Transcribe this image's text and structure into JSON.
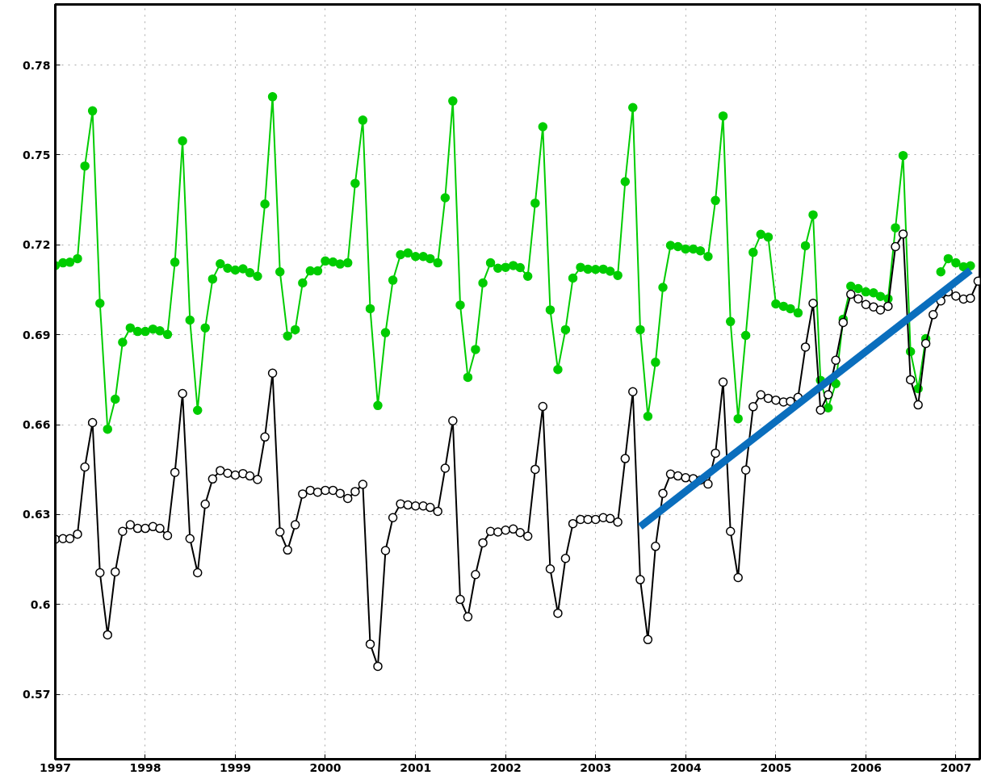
{
  "chart_data": {
    "type": "line",
    "x": [
      "1997-01",
      "1997-02",
      "1997-03",
      "1997-04",
      "1997-05",
      "1997-06",
      "1997-07",
      "1997-08",
      "1997-09",
      "1997-10",
      "1997-11",
      "1997-12",
      "1998-01",
      "1998-02",
      "1998-03",
      "1998-04",
      "1998-05",
      "1998-06",
      "1998-07",
      "1998-08",
      "1998-09",
      "1998-10",
      "1998-11",
      "1998-12",
      "1999-01",
      "1999-02",
      "1999-03",
      "1999-04",
      "1999-05",
      "1999-06",
      "1999-07",
      "1999-08",
      "1999-09",
      "1999-10",
      "1999-11",
      "1999-12",
      "2000-01",
      "2000-02",
      "2000-03",
      "2000-04",
      "2000-05",
      "2000-06",
      "2000-07",
      "2000-08",
      "2000-09",
      "2000-10",
      "2000-11",
      "2000-12",
      "2001-01",
      "2001-02",
      "2001-03",
      "2001-04",
      "2001-05",
      "2001-06",
      "2001-07",
      "2001-08",
      "2001-09",
      "2001-10",
      "2001-11",
      "2001-12",
      "2002-01",
      "2002-02",
      "2002-03",
      "2002-04",
      "2002-05",
      "2002-06",
      "2002-07",
      "2002-08",
      "2002-09",
      "2002-10",
      "2002-11",
      "2002-12",
      "2003-01",
      "2003-02",
      "2003-03",
      "2003-04",
      "2003-05",
      "2003-06",
      "2003-07",
      "2003-08",
      "2003-09",
      "2003-10",
      "2003-11",
      "2003-12",
      "2004-01",
      "2004-02",
      "2004-03",
      "2004-04",
      "2004-05",
      "2004-06",
      "2004-07",
      "2004-08",
      "2004-09",
      "2004-10",
      "2004-11",
      "2004-12",
      "2005-01",
      "2005-02",
      "2005-03",
      "2005-04",
      "2005-05",
      "2005-06",
      "2005-07",
      "2005-08",
      "2005-09",
      "2005-10",
      "2005-11",
      "2005-12",
      "2006-01",
      "2006-02",
      "2006-03",
      "2006-04",
      "2006-05",
      "2006-06",
      "2006-07",
      "2006-08",
      "2006-09",
      "2006-10",
      "2006-11",
      "2006-12",
      "2007-01",
      "2007-02",
      "2007-03",
      "2007-04"
    ],
    "series": [
      {
        "color": "#00cc00",
        "marker": "circle",
        "values": [
          0.7131,
          0.714,
          0.7142,
          0.7154,
          0.7463,
          0.7647,
          0.7005,
          0.6585,
          0.6685,
          0.6875,
          0.6923,
          0.6911,
          0.6911,
          0.6919,
          0.6913,
          0.6901,
          0.7142,
          0.7547,
          0.6949,
          0.6648,
          0.6923,
          0.7086,
          0.7137,
          0.7122,
          0.7116,
          0.712,
          0.7107,
          0.7095,
          0.7336,
          0.7694,
          0.711,
          0.6896,
          0.6917,
          0.7073,
          0.7113,
          0.7113,
          0.7146,
          0.7143,
          0.7136,
          0.714,
          0.7405,
          0.7616,
          0.6987,
          0.6664,
          0.6907,
          0.7082,
          0.7167,
          0.7173,
          0.7161,
          0.7161,
          0.7154,
          0.714,
          0.7357,
          0.768,
          0.6999,
          0.6758,
          0.6851,
          0.7073,
          0.714,
          0.7122,
          0.7125,
          0.7131,
          0.7124,
          0.7095,
          0.7339,
          0.7594,
          0.6983,
          0.6784,
          0.6917,
          0.7089,
          0.7125,
          0.7119,
          0.7118,
          0.7119,
          0.7112,
          0.7098,
          0.7411,
          0.7658,
          0.6917,
          0.6628,
          0.6808,
          0.7058,
          0.7198,
          0.7194,
          0.7186,
          0.7186,
          0.718,
          0.7161,
          0.7348,
          0.763,
          0.6944,
          0.662,
          0.6898,
          0.7175,
          0.7235,
          0.7226,
          0.7003,
          0.6995,
          0.6987,
          0.6973,
          0.7197,
          0.73,
          0.6748,
          0.6656,
          0.6737,
          0.6952,
          0.7062,
          0.7054,
          0.7043,
          0.704,
          0.7028,
          0.702,
          0.7257,
          0.7498,
          0.6844,
          0.672,
          0.6887,
          null,
          0.711,
          0.7154,
          0.714,
          0.7127,
          0.713,
          null
        ]
      },
      {
        "color": "#000000",
        "marker": "circle",
        "values": [
          0.6218,
          0.622,
          0.622,
          0.6235,
          0.6459,
          0.6607,
          0.6106,
          0.5899,
          0.6109,
          0.6244,
          0.6266,
          0.6254,
          0.6254,
          0.626,
          0.6254,
          0.623,
          0.6441,
          0.6704,
          0.622,
          0.6106,
          0.6335,
          0.6419,
          0.6447,
          0.6438,
          0.6432,
          0.6437,
          0.6429,
          0.6417,
          0.6559,
          0.6772,
          0.6242,
          0.6182,
          0.6266,
          0.6369,
          0.6381,
          0.6375,
          0.6381,
          0.6381,
          0.6371,
          0.6354,
          0.6377,
          0.6401,
          0.5868,
          0.5794,
          0.618,
          0.629,
          0.6336,
          0.6332,
          0.6329,
          0.6329,
          0.6324,
          0.6311,
          0.6455,
          0.6613,
          0.6017,
          0.5959,
          0.61,
          0.6206,
          0.6244,
          0.6242,
          0.6248,
          0.6252,
          0.624,
          0.6228,
          0.6451,
          0.6661,
          0.6119,
          0.5971,
          0.6154,
          0.627,
          0.6284,
          0.6284,
          0.6284,
          0.629,
          0.6287,
          0.6275,
          0.6487,
          0.671,
          0.6083,
          0.5883,
          0.6194,
          0.6371,
          0.6435,
          0.6429,
          0.6423,
          0.642,
          0.6415,
          0.6402,
          0.6505,
          0.6742,
          0.6244,
          0.609,
          0.6449,
          0.666,
          0.67,
          0.6688,
          0.6682,
          0.6676,
          0.6678,
          0.6691,
          0.6859,
          0.7005,
          0.6649,
          0.67,
          0.6815,
          0.6941,
          0.7035,
          0.702,
          0.7001,
          0.6993,
          0.6983,
          0.6995,
          0.7194,
          0.7236,
          0.675,
          0.6666,
          0.6871,
          0.6967,
          0.7013,
          0.7043,
          0.7029,
          0.7019,
          0.7022,
          0.7079
        ]
      },
      {
        "color": "#0a6ebd",
        "marker": "none",
        "x": [
          "2003-07",
          "2007-03"
        ],
        "values": [
          0.626,
          0.7115
        ]
      }
    ],
    "xlim": [
      "1997-01-01",
      "2007-04-08"
    ],
    "xticks": [
      "1997",
      "1998",
      "1999",
      "2000",
      "2001",
      "2002",
      "2003",
      "2004",
      "2005",
      "2006",
      "2007"
    ],
    "ylim": [
      0.5484,
      0.8002
    ],
    "yticks": [
      0.57,
      0.6,
      0.63,
      0.66,
      0.69,
      0.72,
      0.75,
      0.78
    ],
    "grid": true
  }
}
